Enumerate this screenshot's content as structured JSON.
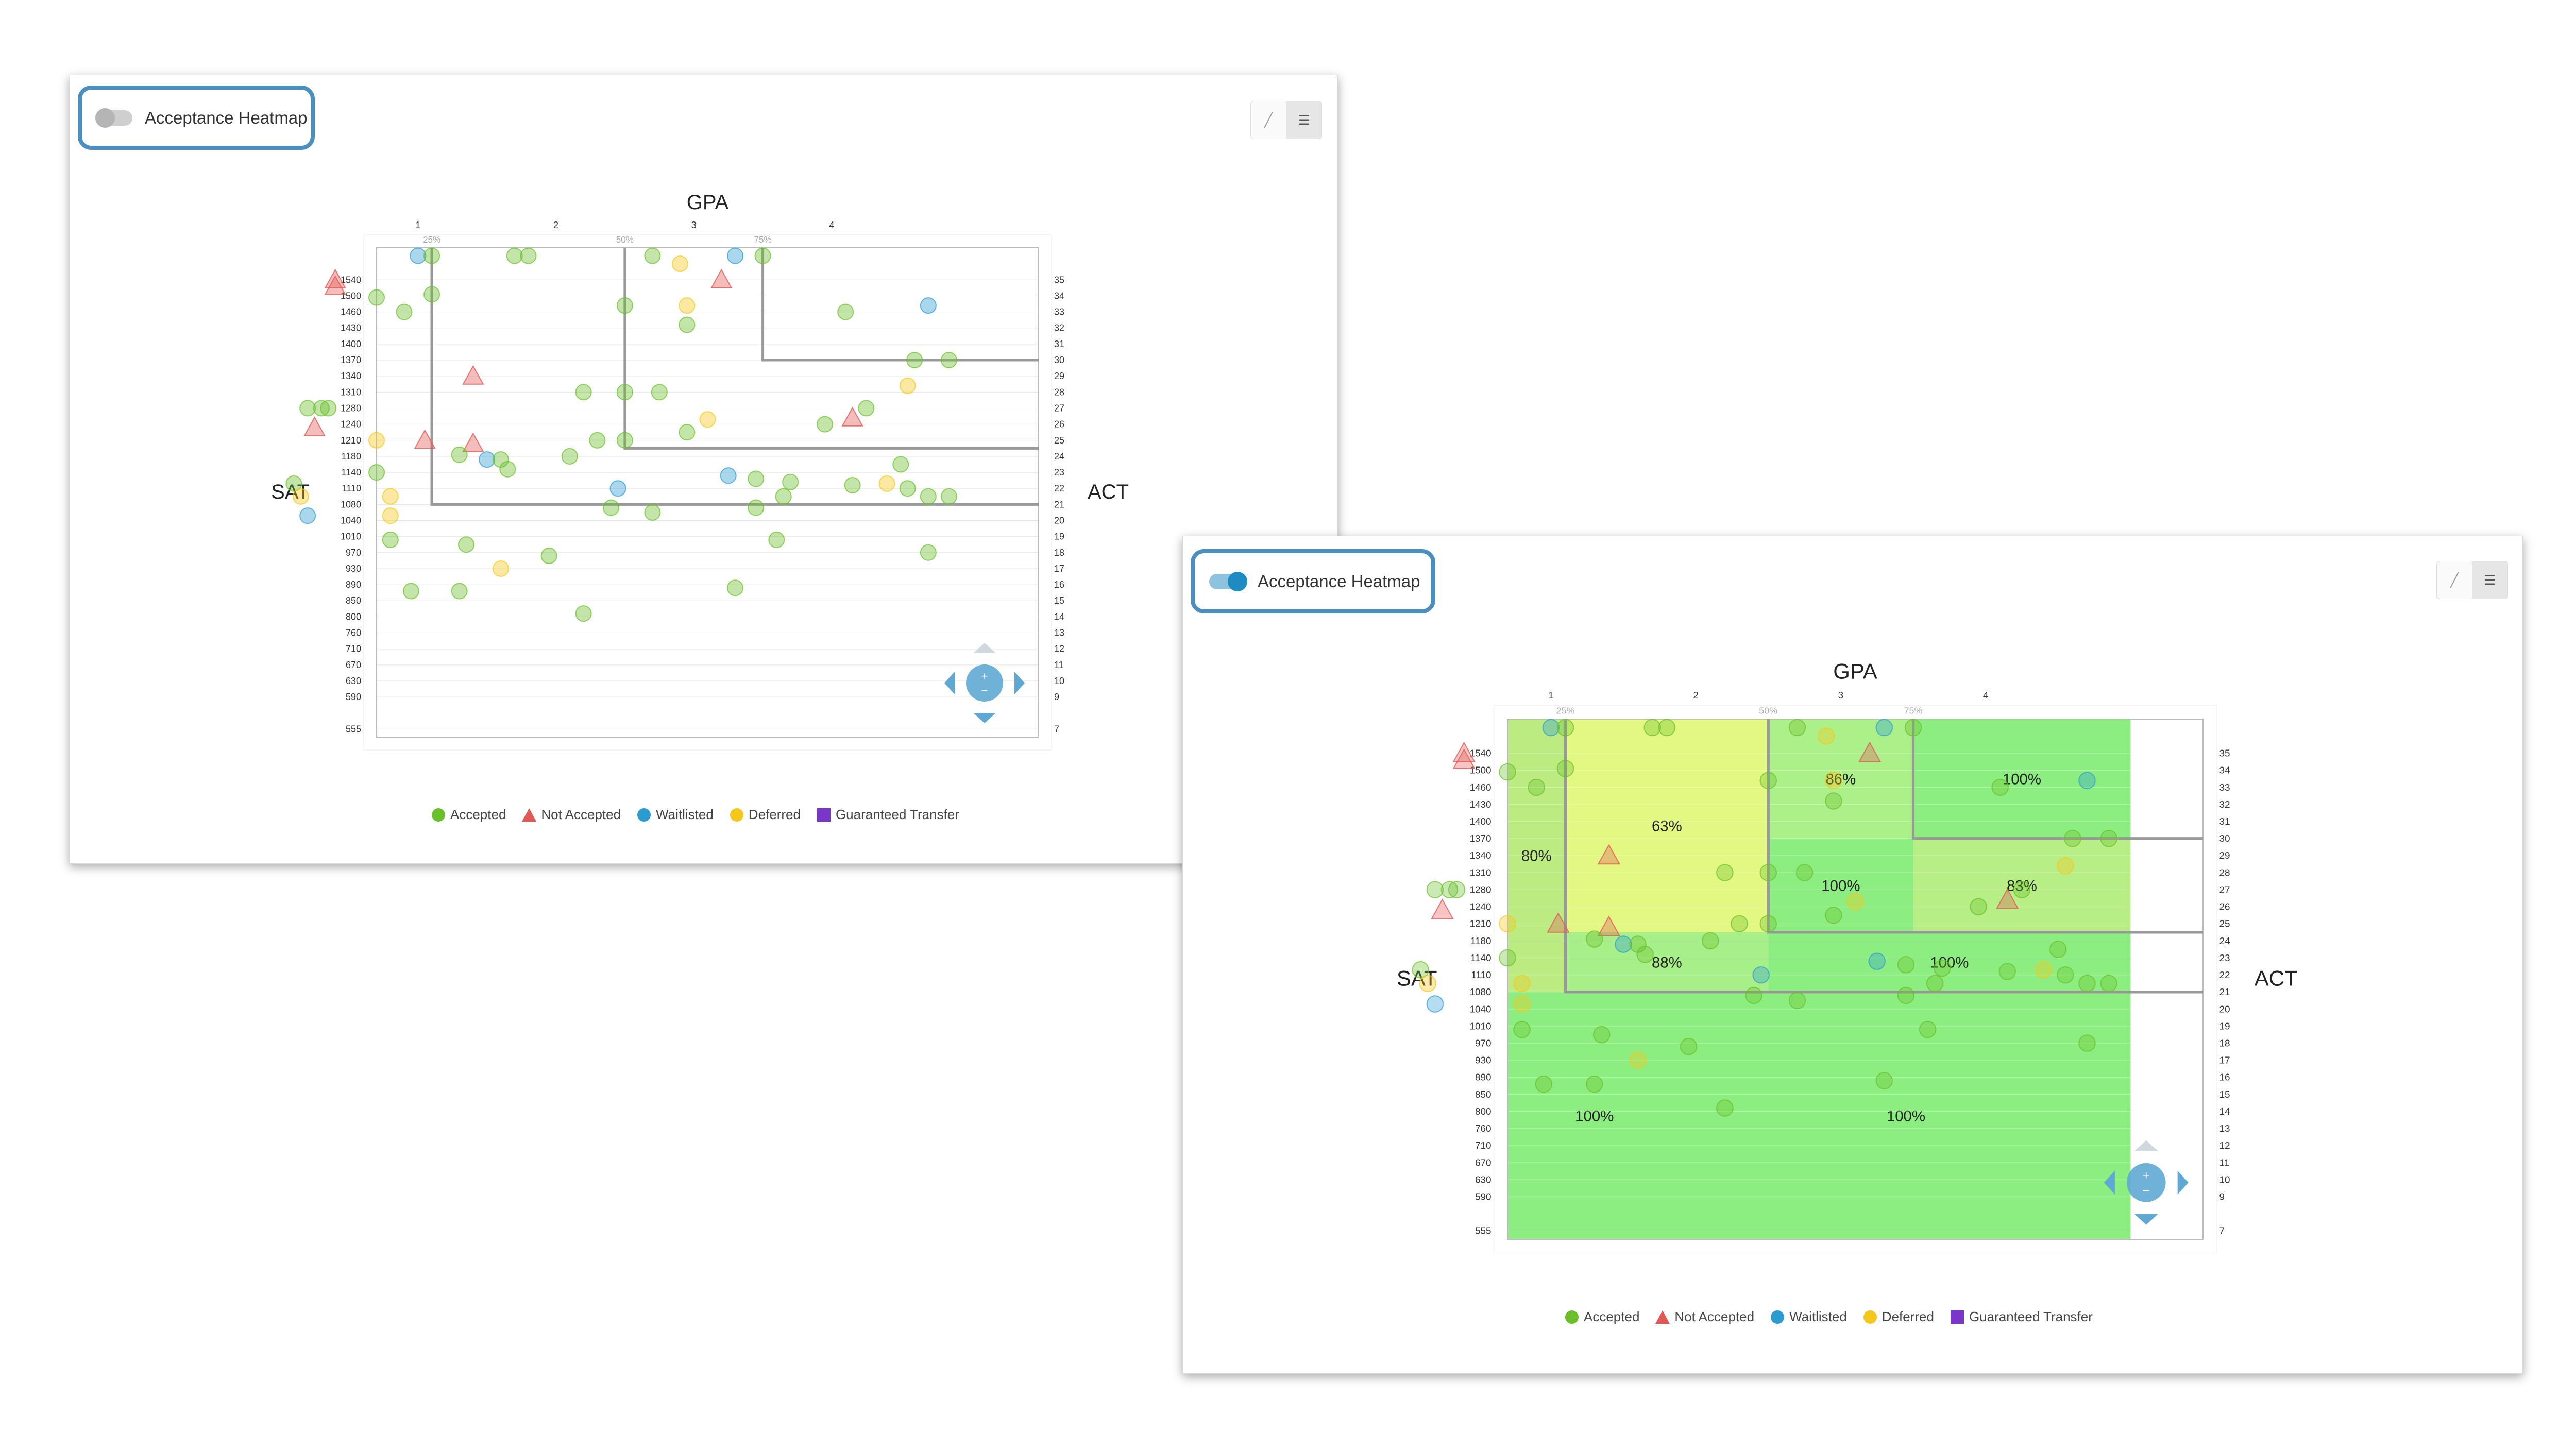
{
  "panels": [
    {
      "toggle": {
        "label": "Acceptance Heatmap",
        "on": false
      },
      "view_buttons": [
        "chart-icon",
        "list-icon"
      ],
      "heatmap": false
    },
    {
      "toggle": {
        "label": "Acceptance Heatmap",
        "on": true
      },
      "view_buttons": [
        "chart-icon",
        "list-icon"
      ],
      "heatmap": true
    }
  ],
  "legend": [
    {
      "label": "Accepted",
      "color": "#6abf2a",
      "shape": "circle"
    },
    {
      "label": "Not Accepted",
      "color": "#e05a55",
      "shape": "triangle"
    },
    {
      "label": "Waitlisted",
      "color": "#2b9bd0",
      "shape": "circle"
    },
    {
      "label": "Deferred",
      "color": "#f5c71a",
      "shape": "circle"
    },
    {
      "label": "Guaranteed Transfer",
      "color": "#7a35c9",
      "shape": "square"
    }
  ],
  "chart_data": {
    "type": "scatter",
    "title": "GPA",
    "xlabel": "GPA",
    "ylabel": "SAT",
    "y2label": "ACT",
    "x_ticks": [
      "1",
      "2",
      "3",
      "4"
    ],
    "x_range": [
      0.7,
      5.5
    ],
    "percentile_labels": [
      "25%",
      "50%",
      "75%"
    ],
    "percentile_gpa": [
      1.1,
      2.5,
      3.5
    ],
    "sat_ticks": [
      "1540",
      "1500",
      "1460",
      "1430",
      "1400",
      "1370",
      "1340",
      "1310",
      "1280",
      "1240",
      "1210",
      "1180",
      "1140",
      "1110",
      "1080",
      "1040",
      "1010",
      "970",
      "930",
      "890",
      "850",
      "800",
      "760",
      "710",
      "670",
      "630",
      "590",
      "555"
    ],
    "act_ticks": [
      "35",
      "34",
      "33",
      "32",
      "31",
      "30",
      "29",
      "28",
      "27",
      "26",
      "25",
      "24",
      "23",
      "22",
      "21",
      "20",
      "19",
      "18",
      "17",
      "16",
      "15",
      "14",
      "13",
      "12",
      "11",
      "10",
      "9",
      "7"
    ],
    "points": [
      {
        "gpa": 1.0,
        "act": 36.5,
        "s": "w"
      },
      {
        "gpa": 1.1,
        "act": 36.5,
        "s": "a"
      },
      {
        "gpa": 1.7,
        "act": 36.5,
        "s": "a"
      },
      {
        "gpa": 1.8,
        "act": 36.5,
        "s": "a"
      },
      {
        "gpa": 2.7,
        "act": 36.5,
        "s": "a"
      },
      {
        "gpa": 2.9,
        "act": 36.0,
        "s": "d"
      },
      {
        "gpa": 3.3,
        "act": 36.5,
        "s": "w"
      },
      {
        "gpa": 3.5,
        "act": 36.5,
        "s": "a"
      },
      {
        "gpa": 0.4,
        "act": 35.0,
        "s": "n"
      },
      {
        "gpa": 0.4,
        "act": 34.6,
        "s": "n"
      },
      {
        "gpa": 3.2,
        "act": 35.0,
        "s": "n"
      },
      {
        "gpa": 0.7,
        "act": 33.9,
        "s": "a"
      },
      {
        "gpa": 1.1,
        "act": 34.1,
        "s": "a"
      },
      {
        "gpa": 0.9,
        "act": 33.0,
        "s": "a"
      },
      {
        "gpa": 2.5,
        "act": 33.4,
        "s": "a"
      },
      {
        "gpa": 2.95,
        "act": 33.4,
        "s": "d"
      },
      {
        "gpa": 2.95,
        "act": 32.2,
        "s": "a"
      },
      {
        "gpa": 4.1,
        "act": 33.0,
        "s": "a"
      },
      {
        "gpa": 4.7,
        "act": 33.4,
        "s": "w"
      },
      {
        "gpa": 4.6,
        "act": 30.0,
        "s": "a"
      },
      {
        "gpa": 4.85,
        "act": 30.0,
        "s": "a"
      },
      {
        "gpa": 1.4,
        "act": 29.0,
        "s": "n"
      },
      {
        "gpa": 0.2,
        "act": 27.0,
        "s": "a"
      },
      {
        "gpa": 0.3,
        "act": 27.0,
        "s": "a"
      },
      {
        "gpa": 0.35,
        "act": 27.0,
        "s": "a"
      },
      {
        "gpa": 0.25,
        "act": 25.8,
        "s": "n"
      },
      {
        "gpa": 2.2,
        "act": 28.0,
        "s": "a"
      },
      {
        "gpa": 2.5,
        "act": 28.0,
        "s": "a"
      },
      {
        "gpa": 2.75,
        "act": 28.0,
        "s": "a"
      },
      {
        "gpa": 4.55,
        "act": 28.4,
        "s": "d"
      },
      {
        "gpa": 4.25,
        "act": 27.0,
        "s": "a"
      },
      {
        "gpa": 4.15,
        "act": 26.4,
        "s": "n"
      },
      {
        "gpa": 3.1,
        "act": 26.3,
        "s": "d"
      },
      {
        "gpa": 3.95,
        "act": 26.0,
        "s": "a"
      },
      {
        "gpa": 0.7,
        "act": 25.0,
        "s": "d"
      },
      {
        "gpa": 1.05,
        "act": 25.0,
        "s": "n"
      },
      {
        "gpa": 1.4,
        "act": 24.8,
        "s": "n"
      },
      {
        "gpa": 2.3,
        "act": 25.0,
        "s": "a"
      },
      {
        "gpa": 2.5,
        "act": 25.0,
        "s": "a"
      },
      {
        "gpa": 2.95,
        "act": 25.5,
        "s": "a"
      },
      {
        "gpa": 1.3,
        "act": 24.1,
        "s": "a"
      },
      {
        "gpa": 1.5,
        "act": 23.8,
        "s": "w"
      },
      {
        "gpa": 1.6,
        "act": 23.8,
        "s": "a"
      },
      {
        "gpa": 1.65,
        "act": 23.2,
        "s": "a"
      },
      {
        "gpa": 2.1,
        "act": 24.0,
        "s": "a"
      },
      {
        "gpa": 0.7,
        "act": 23.0,
        "s": "a"
      },
      {
        "gpa": 0.1,
        "act": 22.3,
        "s": "a"
      },
      {
        "gpa": 0.15,
        "act": 21.5,
        "s": "d"
      },
      {
        "gpa": 0.8,
        "act": 21.5,
        "s": "d"
      },
      {
        "gpa": 2.45,
        "act": 22.0,
        "s": "w"
      },
      {
        "gpa": 3.25,
        "act": 22.8,
        "s": "w"
      },
      {
        "gpa": 3.45,
        "act": 22.6,
        "s": "a"
      },
      {
        "gpa": 3.7,
        "act": 22.4,
        "s": "a"
      },
      {
        "gpa": 4.15,
        "act": 22.2,
        "s": "a"
      },
      {
        "gpa": 4.4,
        "act": 22.3,
        "s": "d"
      },
      {
        "gpa": 4.55,
        "act": 22.0,
        "s": "a"
      },
      {
        "gpa": 4.7,
        "act": 21.5,
        "s": "a"
      },
      {
        "gpa": 4.85,
        "act": 21.5,
        "s": "a"
      },
      {
        "gpa": 3.65,
        "act": 21.5,
        "s": "a"
      },
      {
        "gpa": 2.4,
        "act": 20.8,
        "s": "a"
      },
      {
        "gpa": 2.7,
        "act": 20.5,
        "s": "a"
      },
      {
        "gpa": 3.45,
        "act": 20.8,
        "s": "a"
      },
      {
        "gpa": 4.5,
        "act": 23.5,
        "s": "a"
      },
      {
        "gpa": 0.2,
        "act": 20.3,
        "s": "w"
      },
      {
        "gpa": 0.8,
        "act": 20.3,
        "s": "d"
      },
      {
        "gpa": 0.8,
        "act": 18.8,
        "s": "a"
      },
      {
        "gpa": 1.35,
        "act": 18.5,
        "s": "a"
      },
      {
        "gpa": 1.95,
        "act": 17.8,
        "s": "a"
      },
      {
        "gpa": 1.6,
        "act": 17.0,
        "s": "d"
      },
      {
        "gpa": 3.6,
        "act": 18.8,
        "s": "a"
      },
      {
        "gpa": 4.7,
        "act": 18.0,
        "s": "a"
      },
      {
        "gpa": 0.95,
        "act": 15.6,
        "s": "a"
      },
      {
        "gpa": 1.3,
        "act": 15.6,
        "s": "a"
      },
      {
        "gpa": 3.3,
        "act": 15.8,
        "s": "a"
      },
      {
        "gpa": 2.2,
        "act": 14.2,
        "s": "a"
      }
    ],
    "heat_regions": [
      {
        "gpa": [
          0.0,
          1.1
        ],
        "act": [
          21.0,
          37.0
        ],
        "label": "80%"
      },
      {
        "gpa": [
          1.1,
          2.5
        ],
        "act": [
          24.5,
          37.0
        ],
        "label": "63%"
      },
      {
        "gpa": [
          1.1,
          2.5
        ],
        "act": [
          21.0,
          24.5
        ],
        "label": "88%"
      },
      {
        "gpa": [
          2.5,
          3.5
        ],
        "act": [
          30.0,
          37.0
        ],
        "label": "86%"
      },
      {
        "gpa": [
          3.5,
          5.0
        ],
        "act": [
          30.0,
          37.0
        ],
        "label": "100%"
      },
      {
        "gpa": [
          2.5,
          3.5
        ],
        "act": [
          24.5,
          30.0
        ],
        "label": "100%"
      },
      {
        "gpa": [
          3.5,
          5.0
        ],
        "act": [
          24.5,
          30.0
        ],
        "label": "83%"
      },
      {
        "gpa": [
          2.5,
          5.0
        ],
        "act": [
          21.0,
          24.5
        ],
        "label": "100%"
      },
      {
        "gpa": [
          0.0,
          1.9
        ],
        "act": [
          6.5,
          21.0
        ],
        "label": "100%"
      },
      {
        "gpa": [
          1.9,
          5.0
        ],
        "act": [
          6.5,
          21.0
        ],
        "label": "100%"
      }
    ],
    "heat_colors": {
      "80%": "#b7ea7a",
      "63%": "#e2f77c",
      "88%": "#a2ee82",
      "86%": "#a8ef84",
      "100%": "#86ed7a",
      "83%": "#b3ee7f"
    }
  }
}
